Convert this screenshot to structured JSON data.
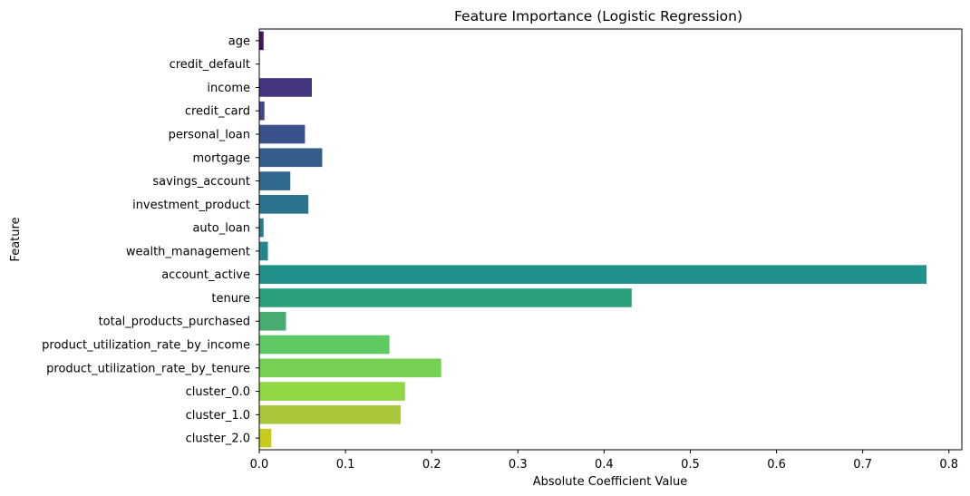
{
  "chart_data": {
    "type": "bar",
    "orientation": "horizontal",
    "title": "Feature Importance (Logistic Regression)",
    "xlabel": "Absolute Coefficient Value",
    "ylabel": "Feature",
    "xlim": [
      0,
      0.815
    ],
    "xticks": [
      "0.0",
      "0.1",
      "0.2",
      "0.3",
      "0.4",
      "0.5",
      "0.6",
      "0.7",
      "0.8"
    ],
    "grid": false,
    "categories": [
      "age",
      "credit_default",
      "income",
      "credit_card",
      "personal_loan",
      "mortgage",
      "savings_account",
      "investment_product",
      "auto_loan",
      "wealth_management",
      "account_active",
      "tenure",
      "total_products_purchased",
      "product_utilization_rate_by_income",
      "product_utilization_rate_by_tenure",
      "cluster_0.0",
      "cluster_1.0",
      "cluster_2.0"
    ],
    "values": [
      0.005,
      0.0,
      0.061,
      0.006,
      0.053,
      0.073,
      0.036,
      0.057,
      0.005,
      0.01,
      0.774,
      0.432,
      0.031,
      0.151,
      0.211,
      0.169,
      0.164,
      0.014
    ],
    "colors": [
      "#471365",
      "#481d6f",
      "#453581",
      "#3f4788",
      "#3b518b",
      "#355e8d",
      "#31688e",
      "#2c738e",
      "#277f8e",
      "#24878e",
      "#21918c",
      "#2ba07d",
      "#48ac70",
      "#5ec962",
      "#75d054",
      "#90d743",
      "#aac73c",
      "#c7cc1c"
    ]
  }
}
